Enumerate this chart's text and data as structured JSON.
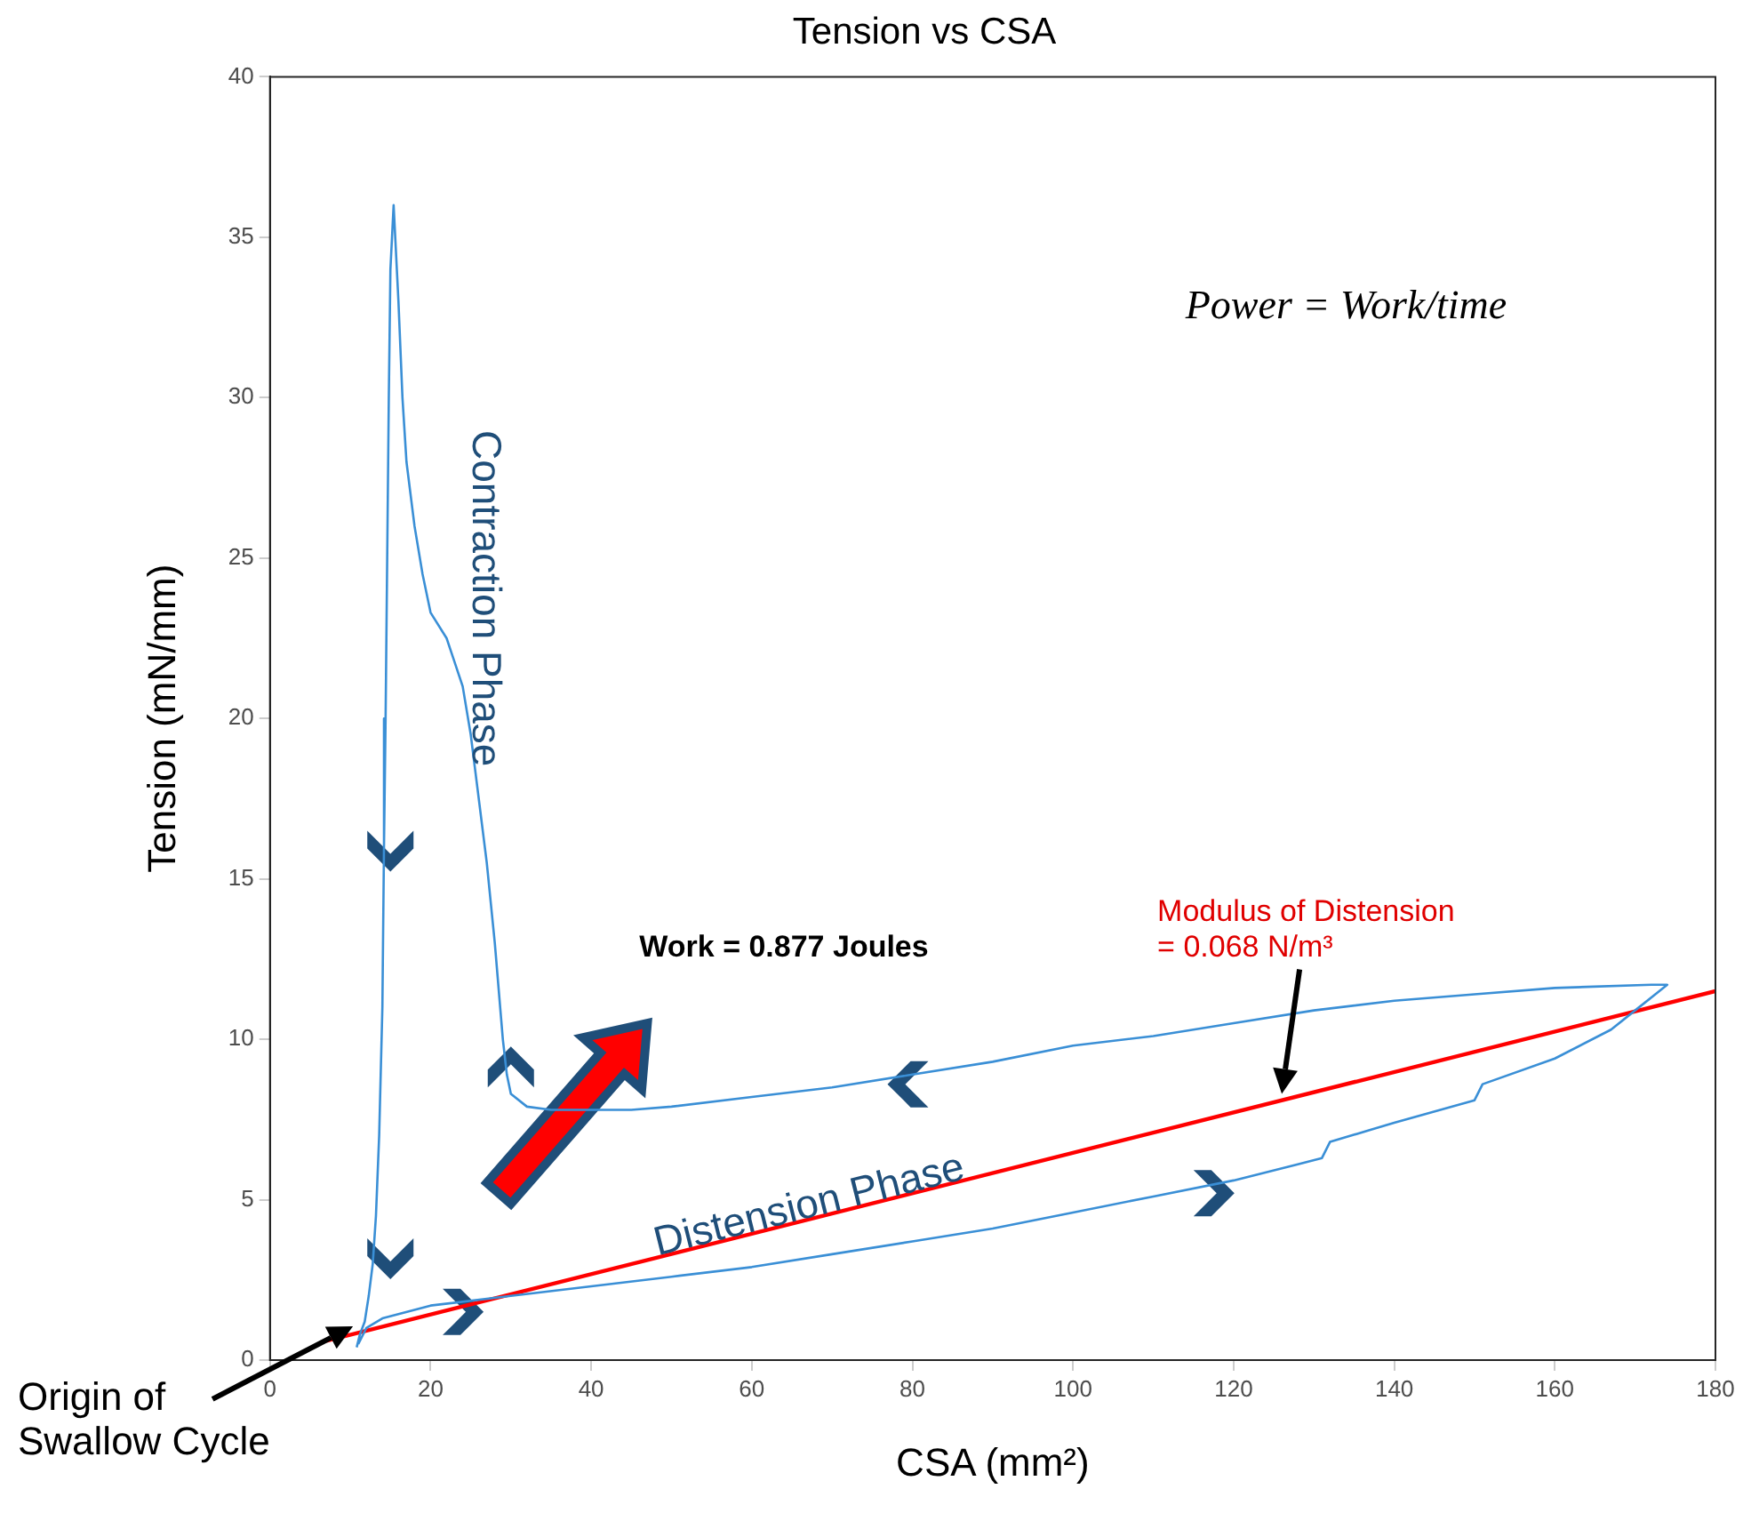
{
  "chart_data": {
    "type": "line",
    "title": "Tension vs CSA",
    "xlabel": "CSA (mm²)",
    "ylabel": "Tension (mN/mm)",
    "xlim": [
      0,
      180
    ],
    "xticks": [
      0,
      20,
      40,
      60,
      80,
      100,
      120,
      140,
      160,
      180
    ],
    "ylim": [
      0,
      40
    ],
    "yticks": [
      0,
      5,
      10,
      15,
      20,
      25,
      30,
      35,
      40
    ],
    "grid": false,
    "legend": false,
    "marker": "none",
    "line_style": "solid",
    "series": [
      {
        "color": "#3a8fd6",
        "x": [
          11,
          12,
          14,
          20,
          30,
          40,
          50,
          60,
          70,
          80,
          90,
          100,
          110,
          120,
          128,
          131,
          132,
          140,
          150,
          151,
          160,
          167,
          170,
          173,
          174,
          172,
          160,
          150,
          140,
          130,
          120,
          110,
          100,
          90,
          80,
          70,
          60,
          50,
          45,
          40,
          35,
          32,
          30,
          29.5,
          29,
          28,
          27,
          26,
          25,
          24,
          22,
          20,
          19,
          18,
          17,
          16.5,
          16,
          15.4,
          15,
          14.8,
          14.6,
          14.4,
          14.2,
          14,
          13.6,
          13.2,
          12.8,
          12.3,
          11.8,
          11.2,
          10.8
        ],
        "values": [
          0.5,
          1,
          1.3,
          1.7,
          2,
          2.3,
          2.6,
          2.9,
          3.3,
          3.7,
          4.1,
          4.6,
          5.1,
          5.6,
          6.1,
          6.3,
          6.8,
          7.4,
          8.1,
          8.6,
          9.4,
          10.3,
          10.9,
          11.5,
          11.7,
          11.7,
          11.6,
          11.4,
          11.2,
          10.9,
          10.5,
          10.1,
          9.8,
          9.3,
          8.9,
          8.5,
          8.2,
          7.9,
          7.8,
          7.8,
          7.8,
          7.9,
          8.3,
          8.9,
          10,
          13,
          15.5,
          17.5,
          19.5,
          21,
          22.5,
          23.3,
          24.5,
          26,
          28,
          30,
          33,
          36,
          34,
          30,
          25,
          20,
          16,
          11,
          7,
          4.5,
          3,
          2,
          1.2,
          0.8,
          0.4
        ]
      },
      {
        "type": "line",
        "color": "#ff0000",
        "x": [
          7,
          180
        ],
        "values": [
          0.6,
          11.5
        ]
      }
    ],
    "annotations": [
      "Power = Work/time",
      "Contraction Phase",
      "Distension Phase",
      "Work = 0.877 Joules",
      "Modulus of Distension\n= 0.068 N/m³",
      {
        "text": "Origin of Swallow Cycle",
        "x": 11,
        "y": 1
      }
    ]
  }
}
